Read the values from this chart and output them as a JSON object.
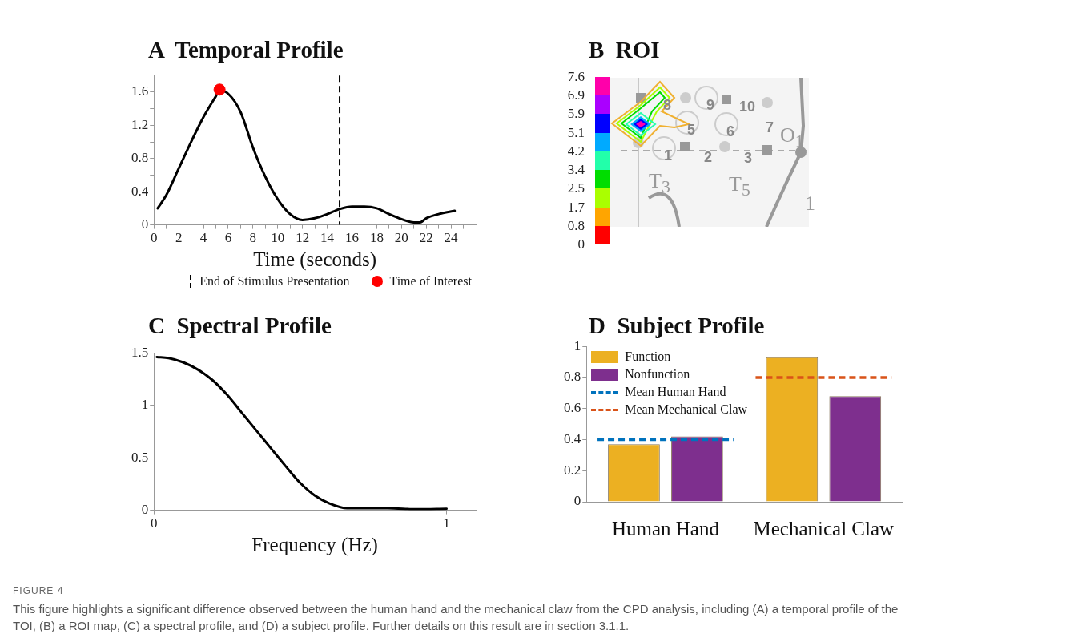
{
  "chart_data": [
    {
      "type": "line",
      "title": "A  Temporal Profile",
      "xlabel": "Time (seconds)",
      "x": [
        0.3,
        1,
        2,
        3,
        4,
        5,
        5.3,
        6,
        7,
        8,
        9,
        10,
        11,
        12,
        13,
        14,
        15,
        16,
        17,
        18,
        19,
        20,
        21,
        21.5,
        22,
        23,
        24.3
      ],
      "series": [
        {
          "type": "line",
          "color": "#000000",
          "values": [
            0.2,
            0.36,
            0.68,
            1.0,
            1.3,
            1.55,
            1.62,
            1.58,
            1.36,
            0.93,
            0.58,
            0.31,
            0.13,
            0.06,
            0.08,
            0.13,
            0.19,
            0.22,
            0.22,
            0.2,
            0.13,
            0.07,
            0.03,
            0.03,
            0.08,
            0.13,
            0.17
          ]
        },
        {
          "type": "scatter",
          "name": "Time of Interest",
          "color": "#ff0000",
          "marker": "circle",
          "x": [
            5.3
          ],
          "values": [
            1.63
          ]
        }
      ],
      "xlim": [
        0,
        26
      ],
      "xticks": [
        0,
        {
          "value": 1,
          "label": null
        },
        2,
        {
          "value": 3,
          "label": null
        },
        4,
        {
          "value": 5,
          "label": null
        },
        6,
        {
          "value": 7,
          "label": null
        },
        8,
        {
          "value": 9,
          "label": null
        },
        10,
        {
          "value": 11,
          "label": null
        },
        12,
        {
          "value": 13,
          "label": null
        },
        14,
        {
          "value": 15,
          "label": null
        },
        16,
        {
          "value": 17,
          "label": null
        },
        18,
        {
          "value": 19,
          "label": null
        },
        20,
        {
          "value": 21,
          "label": null
        },
        22,
        {
          "value": 23,
          "label": null
        },
        24,
        {
          "value": 25,
          "label": null
        }
      ],
      "ylim": [
        0,
        1.8
      ],
      "yticks": [
        0,
        {
          "value": 0.2,
          "label": null
        },
        0.4,
        {
          "value": 0.6,
          "label": null
        },
        0.8,
        {
          "value": 1.0,
          "label": null
        },
        1.2,
        {
          "value": 1.4,
          "label": null
        },
        1.6
      ],
      "ref_lines": [
        {
          "axis": "x",
          "value": 15,
          "label": "End of Stimulus Presentation",
          "color": "#000000",
          "line_style": "dashed"
        }
      ],
      "legend": "bottom"
    },
    {
      "type": "other",
      "title": "B  ROI",
      "colors": [
        "#ff0000",
        "#ffa500",
        "#aaff00",
        "#00dd00",
        "#22ffaa",
        "#00aaff",
        "#0000ff",
        "#aa00ff",
        "#ff00aa"
      ],
      "annotations": [
        "7.6",
        "6.9",
        "5.9",
        "5.1",
        "4.2",
        "3.4",
        "2.5",
        "1.7",
        "0.8",
        "0",
        "1",
        "2",
        "3",
        "5",
        "6",
        "7",
        "8",
        "9",
        "10",
        "T$_{3}$",
        "T$_{5}$",
        "O$_{1}$",
        "1"
      ]
    },
    {
      "type": "line",
      "title": "C  Spectral Profile",
      "xlabel": "Frequency (Hz)",
      "x": [
        0.01,
        0.05,
        0.1,
        0.15,
        0.2,
        0.25,
        0.3,
        0.35,
        0.4,
        0.45,
        0.5,
        0.55,
        0.6,
        0.66,
        0.7,
        0.8,
        0.9,
        1.0
      ],
      "values": [
        1.46,
        1.45,
        1.41,
        1.34,
        1.24,
        1.1,
        0.93,
        0.76,
        0.59,
        0.42,
        0.26,
        0.14,
        0.065,
        0.02,
        0.02,
        0.02,
        0.01,
        0.015
      ],
      "color": "#000000",
      "xlim": [
        0,
        1.1
      ],
      "xticks": [
        0,
        1
      ],
      "ylim": [
        0,
        1.5
      ],
      "yticks": [
        0,
        0.5,
        1,
        1.5
      ]
    },
    {
      "type": "bar",
      "title": "D  Subject Profile",
      "categories": [
        "Human Hand",
        "Mechanical Claw"
      ],
      "series": [
        {
          "name": "Function",
          "color": "#ecb022",
          "values": [
            0.37,
            0.93
          ]
        },
        {
          "name": "Nonfunction",
          "color": "#7e2f8e",
          "values": [
            0.42,
            0.68
          ]
        }
      ],
      "ref_lines": [
        {
          "axis": "y",
          "value": 0.4,
          "label": "Mean Human Hand",
          "color": "#0072bd",
          "line_style": "dashed"
        },
        {
          "axis": "y",
          "value": 0.8,
          "label": "Mean Mechanical Claw",
          "color": "#d95319",
          "line_style": "dashed"
        }
      ],
      "ylim": [
        0,
        1
      ],
      "yticks": [
        0,
        0.2,
        0.4,
        0.6,
        0.8,
        1
      ],
      "legend": "top left"
    },
    {
      "type": "other",
      "title": "FIGURE 4",
      "annotations": [
        "This figure highlights a significant difference observed between the human hand and the mechanical claw from the CPD analysis, including (A) a temporal profile of the TOI, (B) a ROI map, (C) a spectral profile, and (D) a subject profile. Further details on this result are in section 3.1.1."
      ]
    }
  ]
}
